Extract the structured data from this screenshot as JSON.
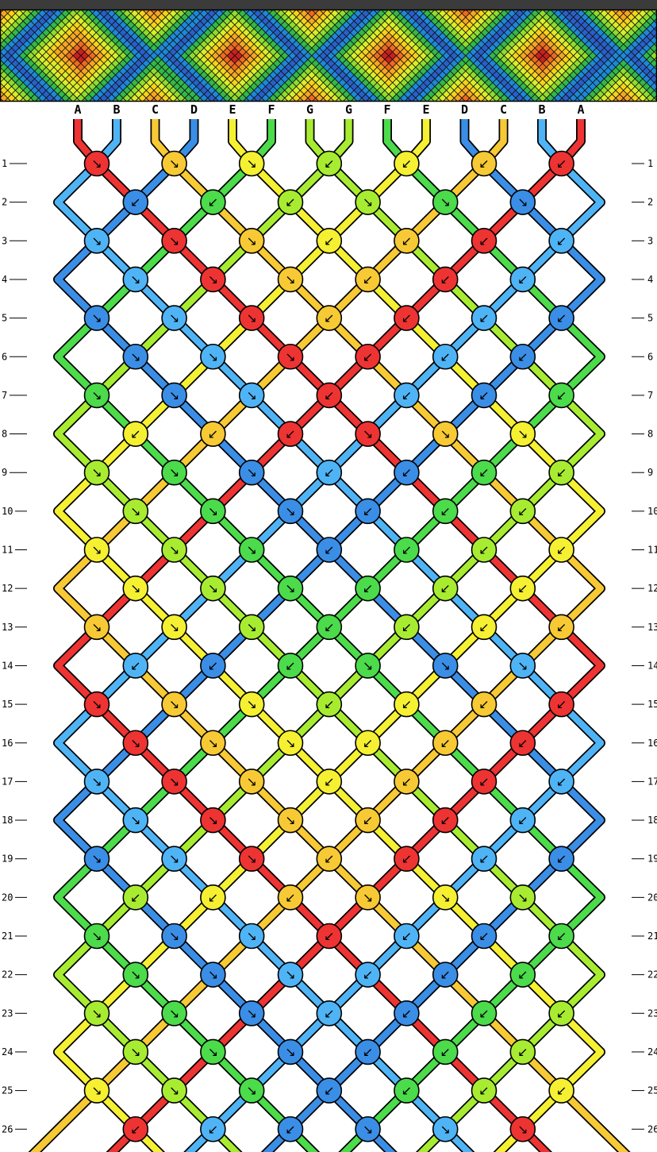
{
  "pattern": {
    "strings": [
      {
        "label": "A",
        "color": "#ee3333"
      },
      {
        "label": "B",
        "color": "#4fb4f5"
      },
      {
        "label": "C",
        "color": "#f7c934"
      },
      {
        "label": "D",
        "color": "#3a8ee6"
      },
      {
        "label": "E",
        "color": "#f5f032"
      },
      {
        "label": "F",
        "color": "#4bdb4b"
      },
      {
        "label": "G",
        "color": "#a8ec32"
      },
      {
        "label": "G",
        "color": "#a8ec32"
      },
      {
        "label": "F",
        "color": "#4bdb4b"
      },
      {
        "label": "E",
        "color": "#f5f032"
      },
      {
        "label": "D",
        "color": "#3a8ee6"
      },
      {
        "label": "C",
        "color": "#f7c934"
      },
      {
        "label": "B",
        "color": "#4fb4f5"
      },
      {
        "label": "A",
        "color": "#ee3333"
      }
    ],
    "rows": [
      "1",
      "2",
      "3",
      "4",
      "5",
      "6",
      "7",
      "8",
      "9",
      "10",
      "11",
      "12",
      "13",
      "14",
      "15",
      "16",
      "17",
      "18",
      "19",
      "20",
      "21",
      "22",
      "23",
      "24",
      "25",
      "26"
    ],
    "knot_directions": {
      "left_half": [
        "↘",
        "↙",
        "↘",
        "↘",
        "↘",
        "↘",
        "↘",
        "↙",
        "↘",
        "↘",
        "↘",
        "↘",
        "↘",
        "↙",
        "↘",
        "↘",
        "↘",
        "↘",
        "↘",
        "↙",
        "↘",
        "↘",
        "↘",
        "↘",
        "↘",
        "↙"
      ],
      "right_half": [
        "↙",
        "↘",
        "↙",
        "↙",
        "↙",
        "↙",
        "↙",
        "↘",
        "↙",
        "↙",
        "↙",
        "↙",
        "↙",
        "↘",
        "↙",
        "↙",
        "↙",
        "↙",
        "↙",
        "↘",
        "↙",
        "↙",
        "↙",
        "↙",
        "↙",
        "↘"
      ]
    }
  }
}
